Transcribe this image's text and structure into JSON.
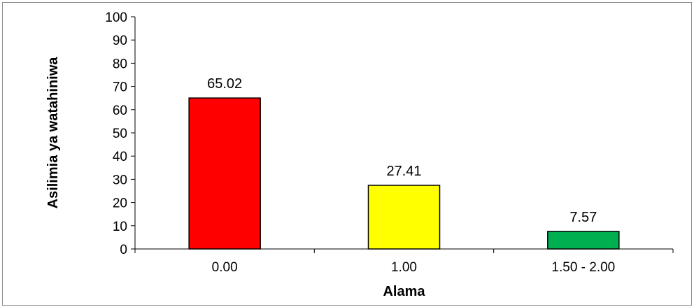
{
  "chart_data": {
    "type": "bar",
    "categories": [
      "0.00",
      "1.00",
      "1.50 - 2.00"
    ],
    "values": [
      65.02,
      27.41,
      7.57
    ],
    "data_labels": [
      "65.02",
      "27.41",
      "7.57"
    ],
    "colors": [
      "#ff0000",
      "#ffff00",
      "#00b050"
    ],
    "xlabel": "Alama",
    "ylabel": "Asilimia ya watahiniwa",
    "ylim": [
      0,
      100
    ],
    "yticks": [
      "0",
      "10",
      "20",
      "30",
      "40",
      "50",
      "60",
      "70",
      "80",
      "90",
      "100"
    ],
    "grid": false,
    "legend": "none"
  }
}
